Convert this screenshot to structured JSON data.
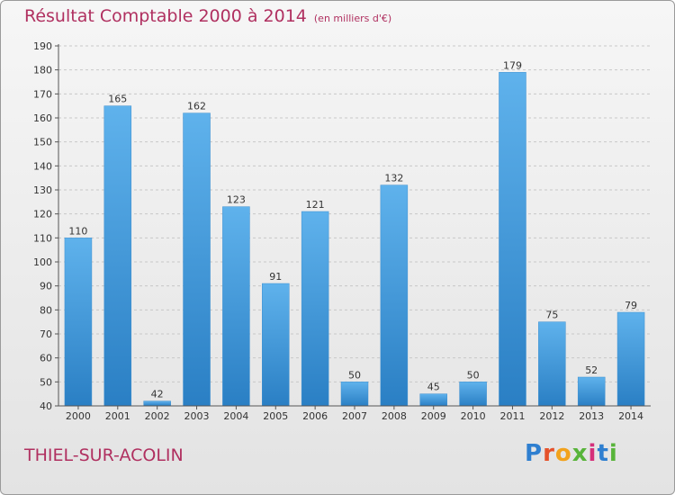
{
  "header": {
    "title": "Résultat Comptable 2000 à 2014",
    "unit": "(en milliers d'€)"
  },
  "footer": {
    "town": "THIEL-SUR-ACOLIN",
    "logo": {
      "letters": [
        "P",
        "r",
        "o",
        "x",
        "i",
        "t",
        "i"
      ]
    }
  },
  "colors": {
    "title": "#b03060",
    "bar_light": "#5fb2ec",
    "bar_dark": "#2a7fc4",
    "logo": [
      "#2f7fd0",
      "#e5522b",
      "#f2a21c",
      "#58b43a",
      "#d5307a",
      "#2f7fd0",
      "#58b43a"
    ]
  },
  "chart_data": {
    "type": "bar",
    "title": "Résultat Comptable 2000 à 2014",
    "subtitle": "(en milliers d'€)",
    "xlabel": "",
    "ylabel": "",
    "categories": [
      "2000",
      "2001",
      "2002",
      "2003",
      "2004",
      "2005",
      "2006",
      "2007",
      "2008",
      "2009",
      "2010",
      "2011",
      "2012",
      "2013",
      "2014"
    ],
    "values": [
      110,
      165,
      42,
      162,
      123,
      91,
      121,
      50,
      132,
      45,
      50,
      179,
      75,
      52,
      79
    ],
    "ylim": [
      40,
      190
    ],
    "yticks": [
      40,
      50,
      60,
      70,
      80,
      90,
      100,
      110,
      120,
      130,
      140,
      150,
      160,
      170,
      180,
      190
    ],
    "grid": "horizontal-dashed",
    "legend": "none"
  }
}
